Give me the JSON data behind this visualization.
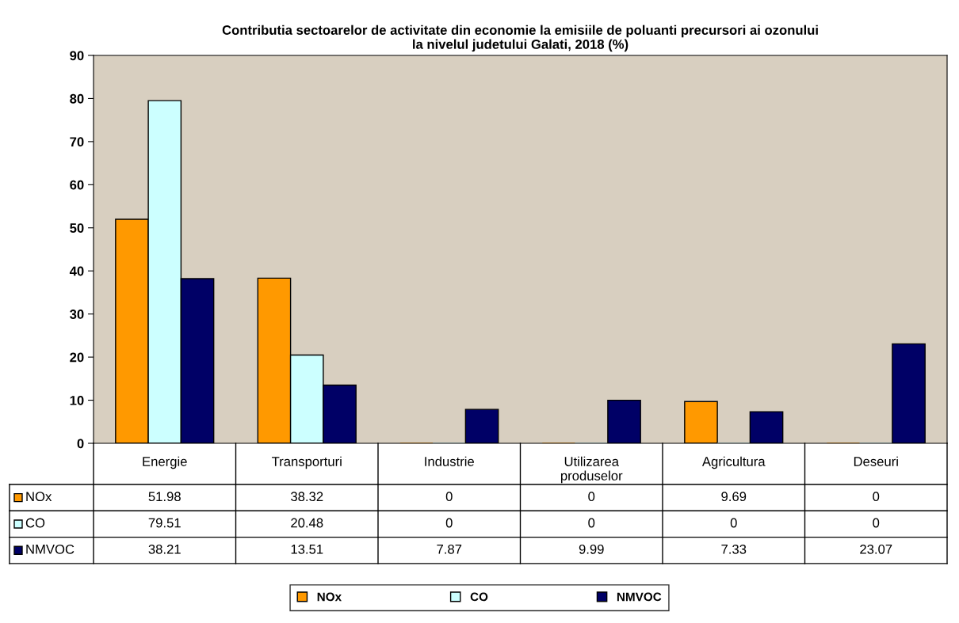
{
  "chart_data": {
    "type": "bar",
    "title": "Contributia sectoarelor de activitate din economie la emisiile de poluanti precursori ai ozonului\nla nivelul judetului Galati, 2018 (%)",
    "categories": [
      "Energie",
      "Transporturi",
      "Industrie",
      "Utilizarea produselor",
      "Agricultura",
      "Deseuri"
    ],
    "series": [
      {
        "name": "NOx",
        "color": "#ff9900",
        "values": [
          51.98,
          38.32,
          0,
          0,
          9.69,
          0
        ]
      },
      {
        "name": "CO",
        "color": "#ccffff",
        "values": [
          79.51,
          20.48,
          0,
          0,
          0,
          0
        ]
      },
      {
        "name": "NMVOC",
        "color": "#000066",
        "values": [
          38.21,
          13.51,
          7.87,
          9.99,
          7.33,
          23.07
        ]
      }
    ],
    "ylim": [
      0,
      90
    ],
    "yticks": [
      0,
      10,
      20,
      30,
      40,
      50,
      60,
      70,
      80,
      90
    ],
    "grid": false,
    "data_labels": true,
    "legend": "bottom"
  }
}
